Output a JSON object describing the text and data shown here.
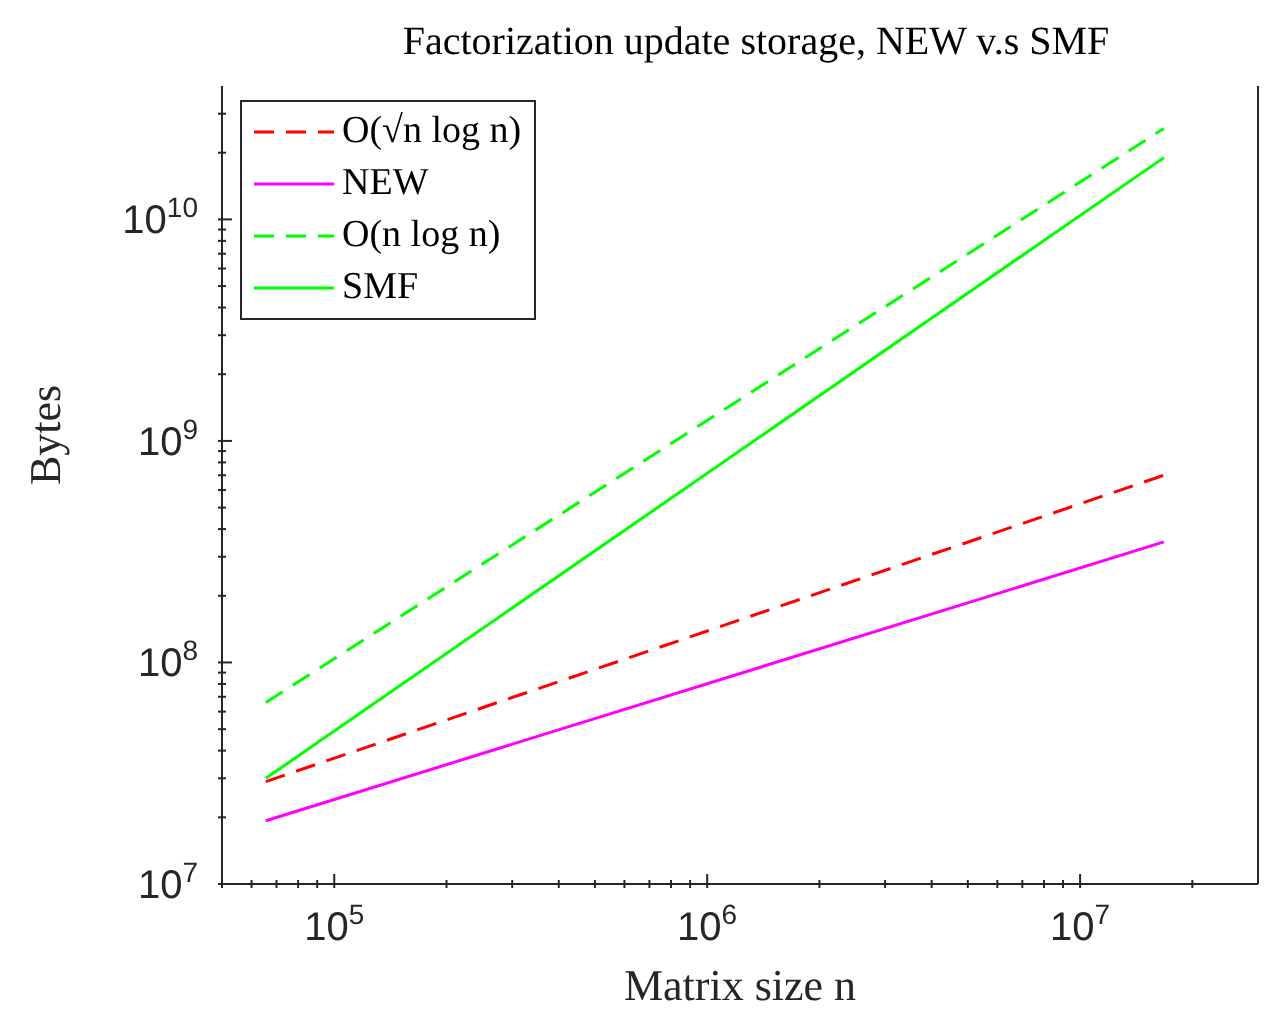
{
  "chart_data": {
    "type": "line",
    "title": "Factorization update storage, NEW v.s SMF",
    "xlabel": "Matrix size n",
    "ylabel": "Bytes",
    "log": "xy",
    "grid": false,
    "legend": "top left",
    "marker": "none",
    "x": [
      65536,
      16777216
    ],
    "series": [
      {
        "name": "O(√n log n)",
        "color": "#ff0000",
        "line_style": "dashed",
        "values": [
          29000000,
          700000000
        ]
      },
      {
        "name": "NEW",
        "color": "#ff00ff",
        "line_style": "solid",
        "values": [
          19300000,
          350000000
        ]
      },
      {
        "name": "O(n log n)",
        "color": "#00ff00",
        "line_style": "dashed",
        "values": [
          66000000,
          25700000000
        ]
      },
      {
        "name": "SMF",
        "color": "#00ff00",
        "line_style": "solid",
        "values": [
          30000000,
          19000000000
        ]
      }
    ],
    "xlim": [
      50000,
      30000000
    ],
    "xticks": [
      {
        "value": 50000,
        "label": null
      },
      {
        "value": 60000,
        "label": null
      },
      {
        "value": 70000,
        "label": null
      },
      {
        "value": 80000,
        "label": null
      },
      {
        "value": 90000,
        "label": null
      },
      {
        "value": 100000,
        "label": "10$^{5}$"
      },
      {
        "value": 200000,
        "label": null
      },
      {
        "value": 300000,
        "label": null
      },
      {
        "value": 400000,
        "label": null
      },
      {
        "value": 500000,
        "label": null
      },
      {
        "value": 600000,
        "label": null
      },
      {
        "value": 700000,
        "label": null
      },
      {
        "value": 800000,
        "label": null
      },
      {
        "value": 900000,
        "label": null
      },
      {
        "value": 1000000,
        "label": "10$^{6}$"
      },
      {
        "value": 2000000,
        "label": null
      },
      {
        "value": 3000000,
        "label": null
      },
      {
        "value": 4000000,
        "label": null
      },
      {
        "value": 5000000,
        "label": null
      },
      {
        "value": 6000000,
        "label": null
      },
      {
        "value": 7000000,
        "label": null
      },
      {
        "value": 8000000,
        "label": null
      },
      {
        "value": 9000000,
        "label": null
      },
      {
        "value": 10000000,
        "label": "10$^{7}$"
      },
      {
        "value": 20000000,
        "label": null
      }
    ],
    "ylim": [
      10000000,
      40000000000
    ],
    "yticks": [
      {
        "value": 10000000,
        "label": "10$^{7}$"
      },
      {
        "value": 20000000,
        "label": null
      },
      {
        "value": 30000000,
        "label": null
      },
      {
        "value": 40000000,
        "label": null
      },
      {
        "value": 50000000,
        "label": null
      },
      {
        "value": 60000000,
        "label": null
      },
      {
        "value": 70000000,
        "label": null
      },
      {
        "value": 80000000,
        "label": null
      },
      {
        "value": 90000000,
        "label": null
      },
      {
        "value": 100000000,
        "label": "10$^{8}$"
      },
      {
        "value": 200000000,
        "label": null
      },
      {
        "value": 300000000,
        "label": null
      },
      {
        "value": 400000000,
        "label": null
      },
      {
        "value": 500000000,
        "label": null
      },
      {
        "value": 600000000,
        "label": null
      },
      {
        "value": 700000000,
        "label": null
      },
      {
        "value": 800000000,
        "label": null
      },
      {
        "value": 900000000,
        "label": null
      },
      {
        "value": 1000000000,
        "label": "10$^{9}$"
      },
      {
        "value": 2000000000,
        "label": null
      },
      {
        "value": 3000000000,
        "label": null
      },
      {
        "value": 4000000000,
        "label": null
      },
      {
        "value": 5000000000,
        "label": null
      },
      {
        "value": 6000000000,
        "label": null
      },
      {
        "value": 7000000000,
        "label": null
      },
      {
        "value": 8000000000,
        "label": null
      },
      {
        "value": 9000000000,
        "label": null
      },
      {
        "value": 10000000000,
        "label": "10$^{10}$"
      },
      {
        "value": 20000000000,
        "label": null
      },
      {
        "value": 30000000000,
        "label": null
      }
    ]
  }
}
